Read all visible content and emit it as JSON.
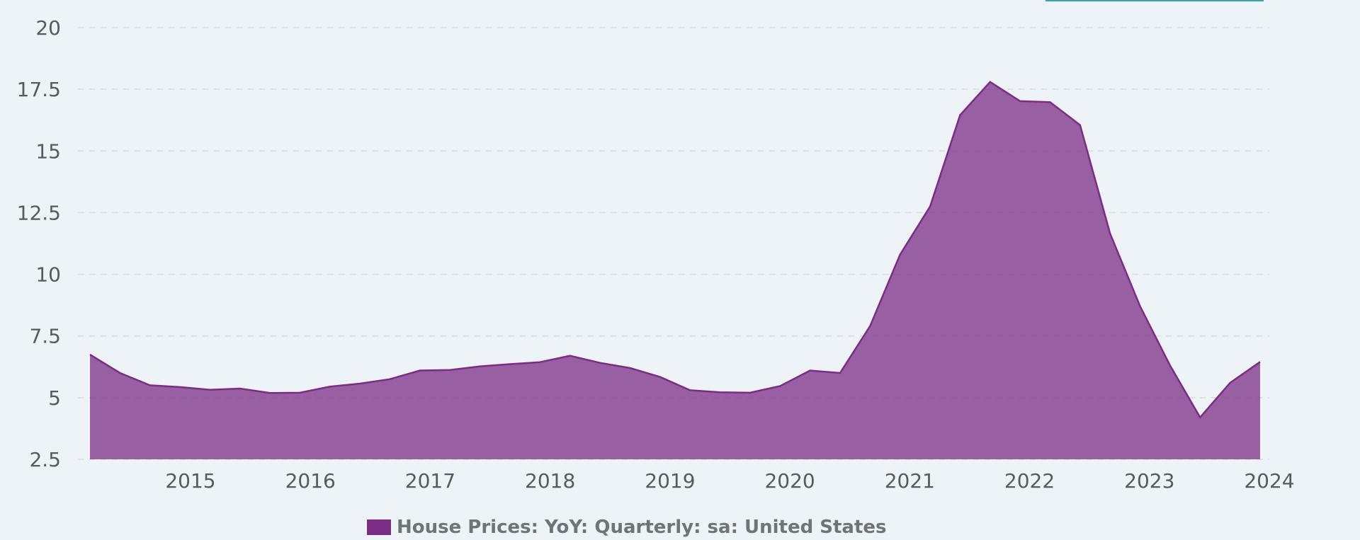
{
  "colors": {
    "series": "#7b2d86",
    "tab": "#3aa3b2"
  },
  "chart_data": {
    "type": "area",
    "title": "",
    "xlabel": "",
    "ylabel": "",
    "ylim": [
      2.5,
      20
    ],
    "xlim": [
      2014.15,
      2024.0
    ],
    "yticks": [
      2.5,
      5,
      7.5,
      10,
      12.5,
      15,
      17.5,
      20
    ],
    "ytick_labels": [
      "2.5",
      "5",
      "7.5",
      "10",
      "12.5",
      "15",
      "17.5",
      "20"
    ],
    "xticks": [
      2015,
      2016,
      2017,
      2018,
      2019,
      2020,
      2021,
      2022,
      2023,
      2024
    ],
    "xtick_labels": [
      "2015",
      "2016",
      "2017",
      "2018",
      "2019",
      "2020",
      "2021",
      "2022",
      "2023",
      "2024"
    ],
    "grid": true,
    "legend_position": "bottom",
    "series": [
      {
        "name": "House Prices: YoY: Quarterly: sa: United States",
        "x": [
          2014.0,
          2014.25,
          2014.5,
          2014.75,
          2015.0,
          2015.25,
          2015.5,
          2015.75,
          2016.0,
          2016.25,
          2016.5,
          2016.75,
          2017.0,
          2017.25,
          2017.5,
          2017.75,
          2018.0,
          2018.25,
          2018.5,
          2018.75,
          2019.0,
          2019.25,
          2019.5,
          2019.75,
          2020.0,
          2020.25,
          2020.5,
          2020.75,
          2021.0,
          2021.25,
          2021.5,
          2021.75,
          2022.0,
          2022.25,
          2022.5,
          2022.75,
          2023.0,
          2023.25,
          2023.5,
          2023.75
        ],
        "values": [
          6.75,
          6.0,
          5.5,
          5.43,
          5.32,
          5.37,
          5.19,
          5.2,
          5.45,
          5.57,
          5.75,
          6.1,
          6.12,
          6.27,
          6.36,
          6.44,
          6.7,
          6.41,
          6.2,
          5.84,
          5.3,
          5.22,
          5.2,
          5.47,
          6.1,
          6.0,
          7.9,
          10.8,
          12.75,
          16.45,
          17.8,
          17.02,
          16.98,
          16.05,
          11.65,
          8.7,
          6.3,
          4.2,
          5.6,
          6.45
        ]
      }
    ]
  }
}
